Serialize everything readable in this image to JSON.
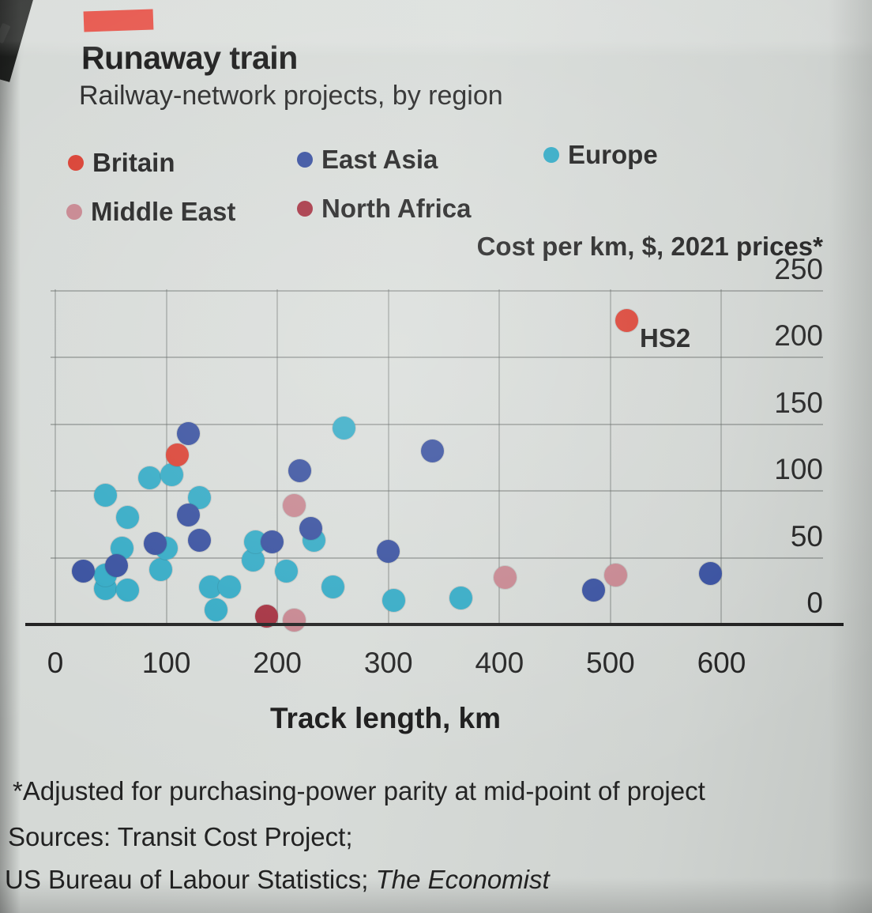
{
  "page": {
    "title": "Runaway train",
    "subtitle": "Railway-network projects, by region",
    "y_axis_title": "Cost per km, $, 2021 prices*",
    "x_axis_title": "Track length, km",
    "footnote": "*Adjusted for purchasing-power parity at mid-point of project",
    "sources_line1": "Sources: Transit Cost Project;",
    "sources_line2_prefix": "US Bureau of Labour Statistics; ",
    "sources_line2_italic": "The Economist",
    "accent_color": "#e3382c"
  },
  "chart_data": {
    "type": "scatter",
    "title": "Runaway train",
    "subtitle": "Railway-network projects, by region",
    "xlabel": "Track length, km",
    "ylabel": "Cost per km, $, 2021 prices*",
    "xlim": [
      0,
      690
    ],
    "ylim": [
      0,
      250
    ],
    "x_ticks": [
      0,
      100,
      200,
      300,
      400,
      500,
      600
    ],
    "y_ticks": [
      0,
      50,
      100,
      150,
      200,
      250
    ],
    "grid": true,
    "legend_position": "top-left",
    "series": [
      {
        "name": "Britain",
        "color": "#d8392b",
        "points": [
          [
            110,
            127
          ],
          [
            515,
            228
          ]
        ]
      },
      {
        "name": "East Asia",
        "color": "#30499b",
        "points": [
          [
            25,
            40
          ],
          [
            55,
            44
          ],
          [
            90,
            61
          ],
          [
            120,
            82
          ],
          [
            120,
            143
          ],
          [
            130,
            63
          ],
          [
            195,
            62
          ],
          [
            220,
            115
          ],
          [
            230,
            72
          ],
          [
            300,
            55
          ],
          [
            340,
            130
          ],
          [
            485,
            26
          ],
          [
            590,
            38
          ]
        ]
      },
      {
        "name": "Europe",
        "color": "#2ca7c3",
        "points": [
          [
            45,
            27
          ],
          [
            45,
            37
          ],
          [
            45,
            97
          ],
          [
            60,
            57
          ],
          [
            65,
            26
          ],
          [
            65,
            80
          ],
          [
            85,
            110
          ],
          [
            95,
            41
          ],
          [
            100,
            57
          ],
          [
            105,
            112
          ],
          [
            130,
            95
          ],
          [
            140,
            28
          ],
          [
            145,
            11
          ],
          [
            157,
            28
          ],
          [
            178,
            48
          ],
          [
            180,
            62
          ],
          [
            208,
            40
          ],
          [
            233,
            63
          ],
          [
            250,
            28
          ],
          [
            260,
            147
          ],
          [
            305,
            18
          ],
          [
            365,
            20
          ]
        ]
      },
      {
        "name": "Middle East",
        "color": "#c4818b",
        "points": [
          [
            215,
            3
          ],
          [
            215,
            89
          ],
          [
            405,
            35
          ],
          [
            505,
            37
          ]
        ]
      },
      {
        "name": "North Africa",
        "color": "#a12939",
        "points": [
          [
            190,
            6
          ]
        ]
      }
    ],
    "annotations": [
      {
        "text": "HS2",
        "x": 515,
        "y": 228
      }
    ]
  }
}
